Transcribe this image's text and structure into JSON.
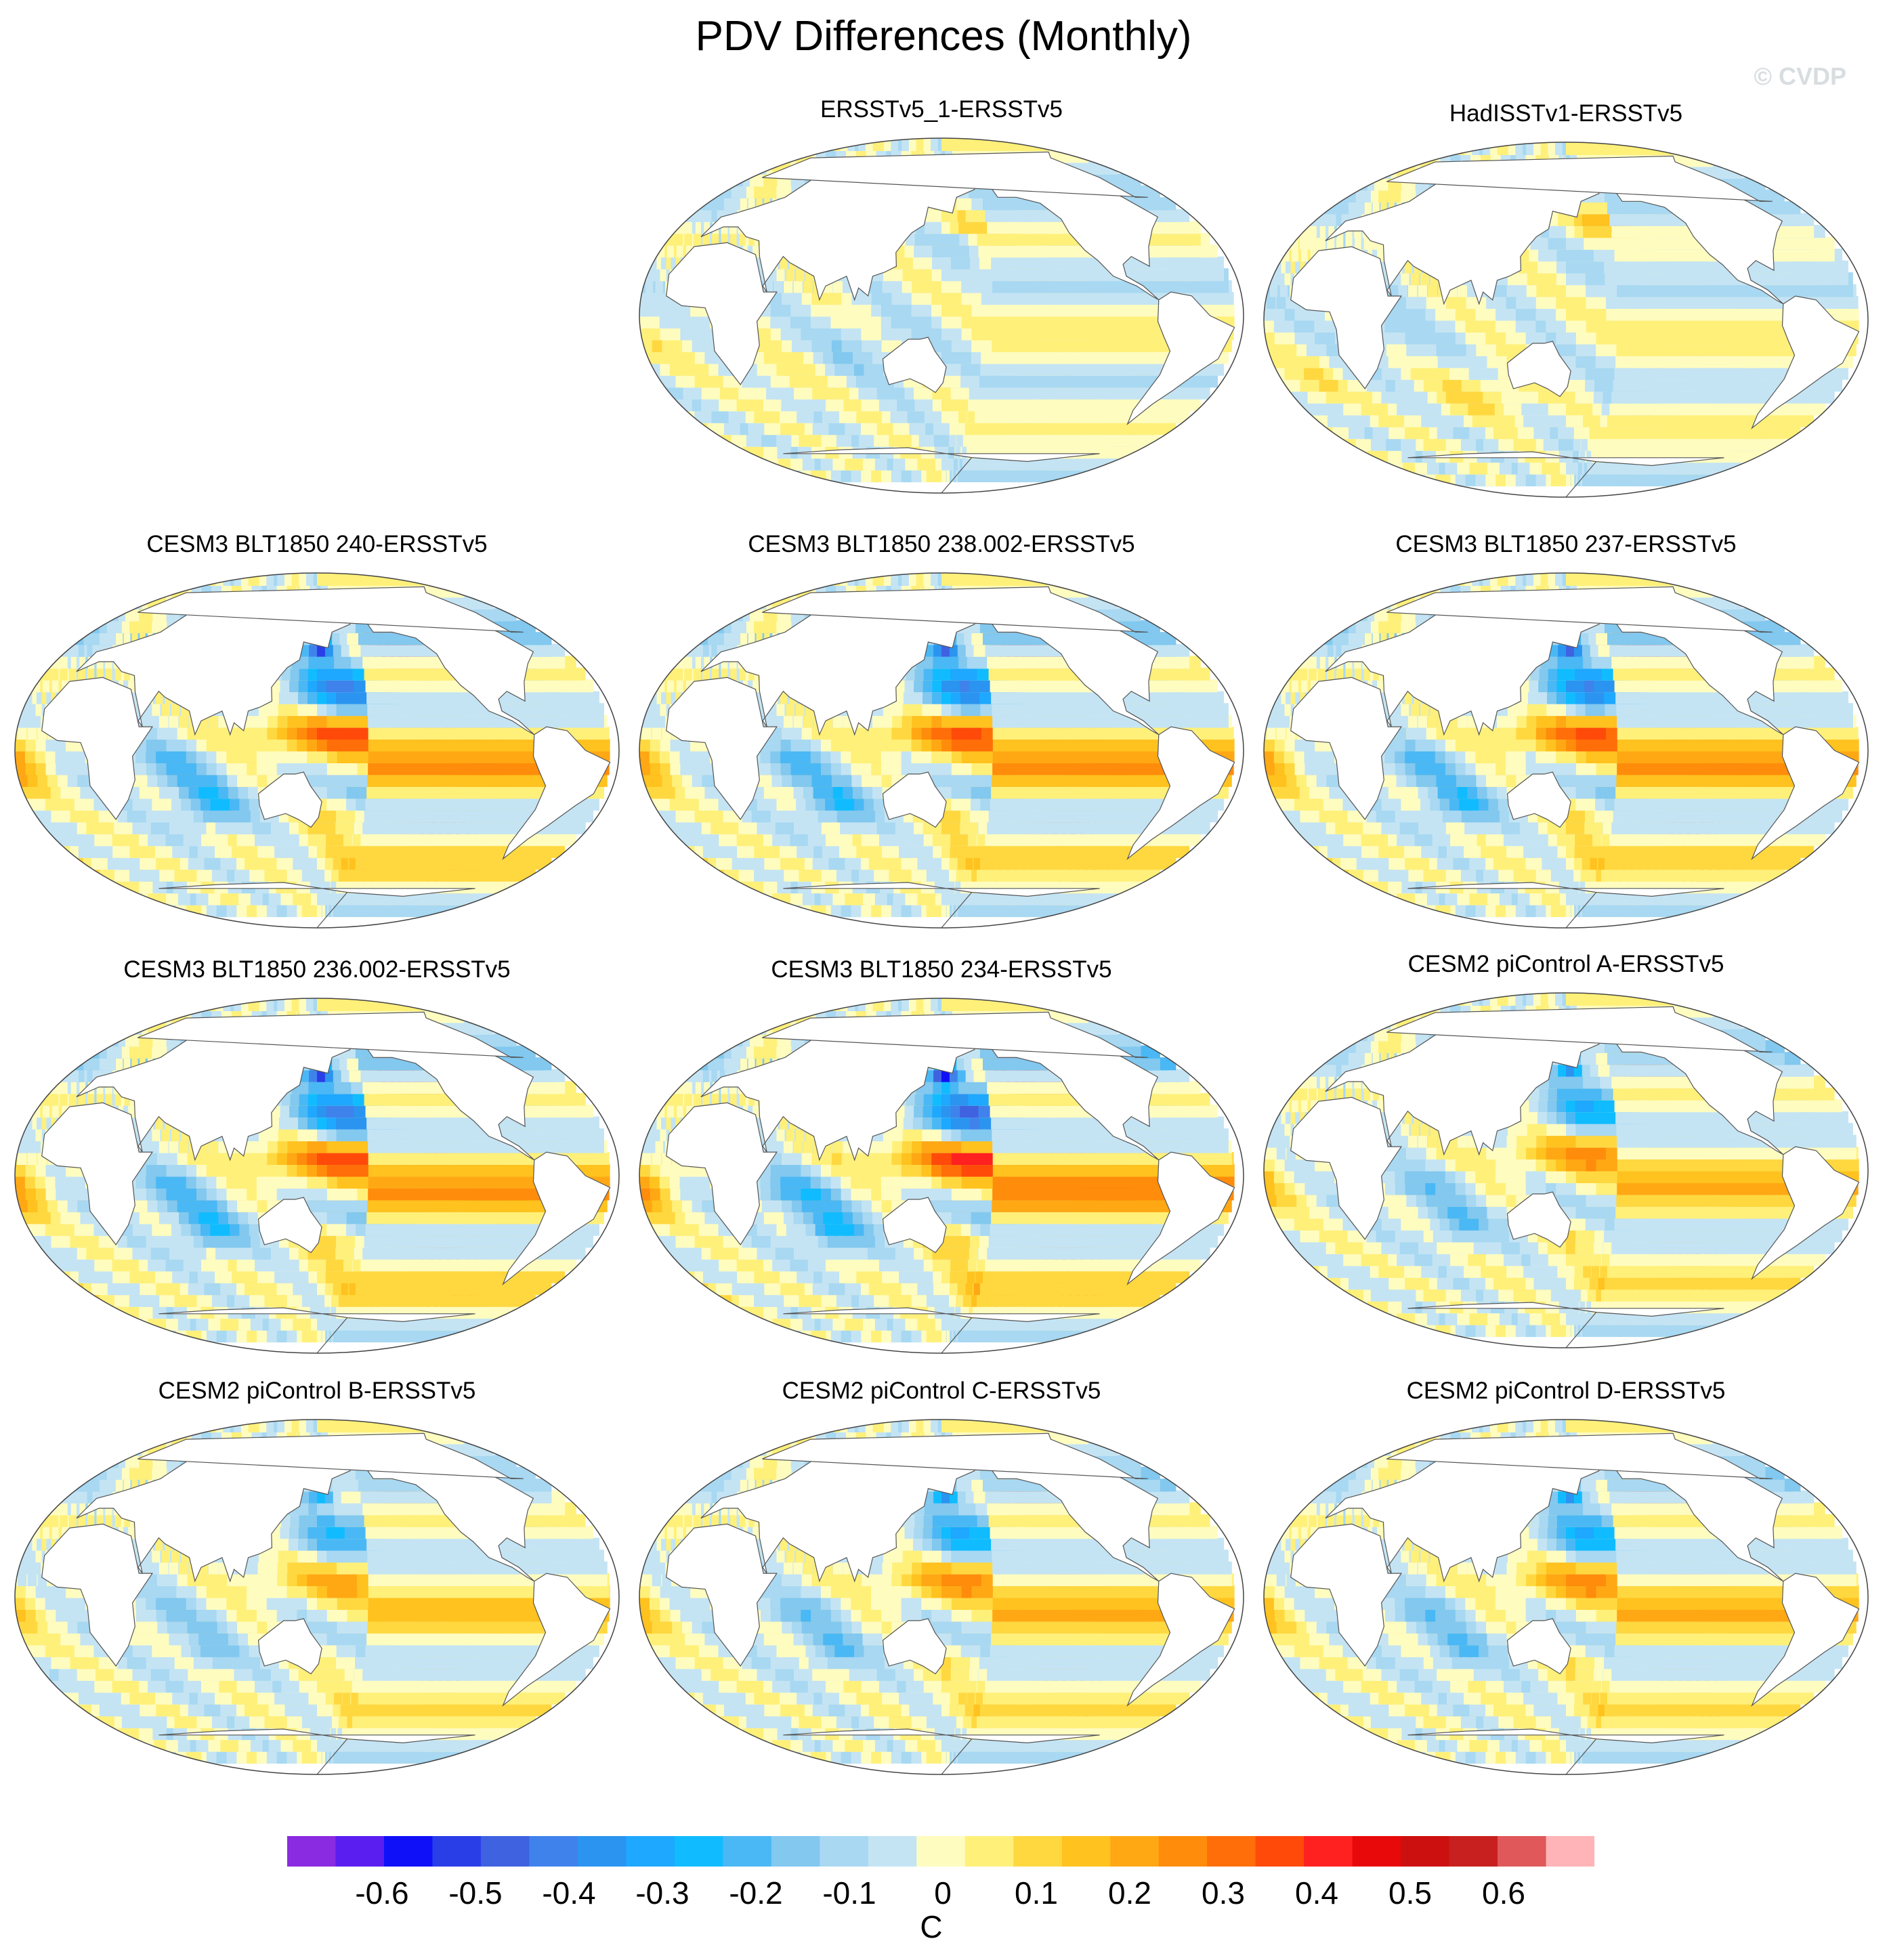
{
  "figure": {
    "title": "PDV Differences (Monthly)",
    "copyright": "© CVDP"
  },
  "panels": [
    {
      "title": "ERSSTv5_1-ERSSTv5",
      "pattern": "obs-ersst",
      "amp": 0.45
    },
    {
      "title": "HadISSTv1-ERSSTv5",
      "pattern": "obs-hadisst",
      "amp": 0.5
    },
    {
      "title": "CESM3 BLT1850 240-ERSSTv5",
      "pattern": "model",
      "amp": 1.0
    },
    {
      "title": "CESM3 BLT1850 238.002-ERSSTv5",
      "pattern": "model",
      "amp": 0.95
    },
    {
      "title": "CESM3 BLT1850 237-ERSSTv5",
      "pattern": "model",
      "amp": 0.95
    },
    {
      "title": "CESM3 BLT1850 236.002-ERSSTv5",
      "pattern": "model",
      "amp": 1.0
    },
    {
      "title": "CESM3 BLT1850 234-ERSSTv5",
      "pattern": "model",
      "amp": 1.1
    },
    {
      "title": "CESM2 piControl A-ERSSTv5",
      "pattern": "model",
      "amp": 0.7
    },
    {
      "title": "CESM2 piControl B-ERSSTv5",
      "pattern": "model",
      "amp": 0.55
    },
    {
      "title": "CESM2 piControl C-ERSSTv5",
      "pattern": "model",
      "amp": 0.7
    },
    {
      "title": "CESM2 piControl D-ERSSTv5",
      "pattern": "model",
      "amp": 0.7
    }
  ],
  "colorbar": {
    "unit": "C",
    "tick_labels": [
      "-0.6",
      "-0.5",
      "-0.4",
      "-0.3",
      "-0.2",
      "-0.1",
      "0",
      "0.1",
      "0.2",
      "0.3",
      "0.4",
      "0.5",
      "0.6"
    ],
    "colors": [
      "#8a2be2",
      "#5a1ef0",
      "#1010f8",
      "#2a3ee8",
      "#3f62e0",
      "#3f82ec",
      "#2a94f0",
      "#1ea8ff",
      "#10bcff",
      "#4ab8f4",
      "#82c8ef",
      "#a8d8f2",
      "#c4e4f4",
      "#fffcc0",
      "#fff07a",
      "#ffd840",
      "#ffc21e",
      "#ffa814",
      "#ff8c0a",
      "#ff6e08",
      "#ff4a0a",
      "#ff2020",
      "#e80a0a",
      "#cc1010",
      "#c8201e",
      "#e0585a",
      "#ffb4b8"
    ]
  }
}
